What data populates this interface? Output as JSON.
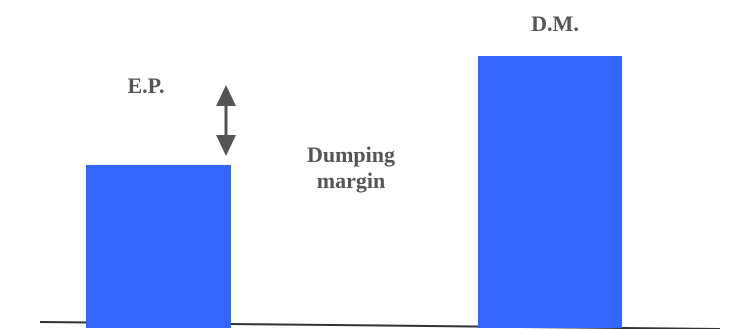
{
  "labels": {
    "export_price": "E.P.",
    "domestic_market": "D.M.",
    "margin_line1": "Dumping",
    "margin_line2": "margin"
  },
  "chart_data": {
    "type": "bar",
    "categories": [
      "E.P.",
      "D.M."
    ],
    "values": [
      0.6,
      1.0
    ],
    "annotations": [
      "Dumping margin"
    ]
  },
  "colors": {
    "bar_fill": "#3366FF",
    "text": "#555555",
    "arrow": "#555555",
    "baseline": "#333333"
  },
  "icons": {
    "difference_arrow": "double-arrow-vertical-icon"
  }
}
